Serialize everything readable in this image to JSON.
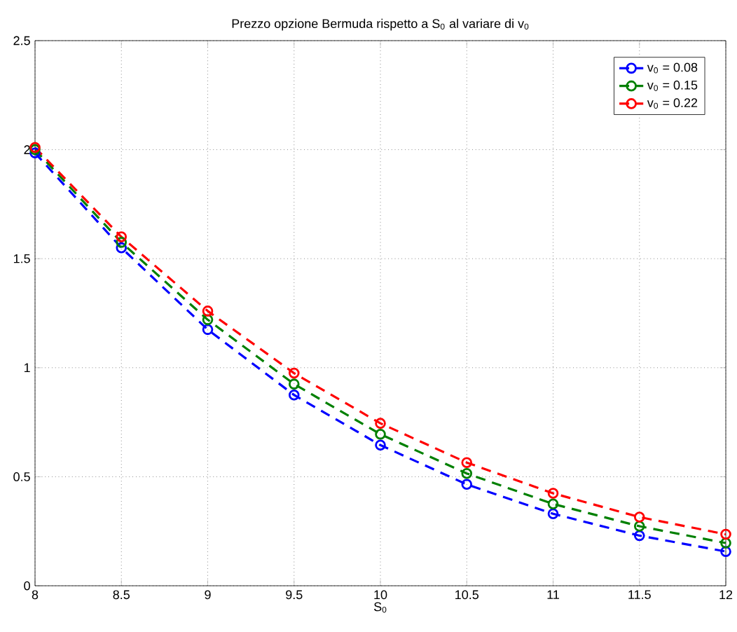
{
  "chart_data": {
    "type": "line",
    "title": "Prezzo opzione Bermuda rispetto a S$_{0}$ al variare di v$_{0}$",
    "xlabel": "S$_{0}$",
    "x": [
      8,
      8.5,
      9,
      9.5,
      10,
      10.5,
      11,
      11.5,
      12
    ],
    "series": [
      {
        "name": "v$_{0}$ = 0.08",
        "color": "#0000ff",
        "values": [
          1.985,
          1.55,
          1.175,
          0.875,
          0.645,
          0.465,
          0.33,
          0.23,
          0.157
        ]
      },
      {
        "name": "v$_{0}$ = 0.15",
        "color": "#008000",
        "values": [
          2.0,
          1.575,
          1.22,
          0.925,
          0.695,
          0.515,
          0.375,
          0.273,
          0.196
        ]
      },
      {
        "name": "v$_{0}$ = 0.22",
        "color": "#ff0000",
        "values": [
          2.01,
          1.6,
          1.26,
          0.975,
          0.745,
          0.565,
          0.424,
          0.315,
          0.236
        ]
      }
    ],
    "xlim": [
      8,
      12
    ],
    "ylim": [
      0,
      2.5
    ],
    "xticks": [
      8,
      8.5,
      9,
      9.5,
      10,
      10.5,
      11,
      11.5,
      12
    ],
    "yticks": [
      0,
      0.5,
      1,
      1.5,
      2,
      2.5
    ],
    "grid": true,
    "legend": "top right",
    "marker": "circle",
    "line_style": "dashed"
  }
}
